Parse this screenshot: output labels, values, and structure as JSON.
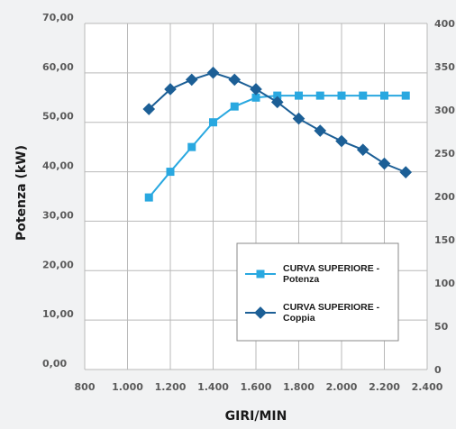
{
  "chart_data": {
    "type": "line",
    "xlabel": "GIRI/MIN",
    "ylabel": "Potenza (kW)",
    "x_ticks": [
      "800",
      "1.000",
      "1.200",
      "1.400",
      "1.600",
      "1.800",
      "2.000",
      "2.200",
      "2.400"
    ],
    "y_ticks_left": [
      "0,00",
      "10,00",
      "20,00",
      "30,00",
      "40,00",
      "50,00",
      "60,00",
      "70,00"
    ],
    "y_ticks_right": [
      "0",
      "50",
      "100",
      "150",
      "200",
      "250",
      "300",
      "350",
      "400"
    ],
    "xlim": [
      800,
      2400
    ],
    "ylim_left": [
      0,
      70
    ],
    "ylim_right": [
      0,
      400
    ],
    "grid": true,
    "legend_position": "bottom-right",
    "series": [
      {
        "name": "CURVA SUPERIORE - Potenza",
        "axis": "left",
        "marker": "square",
        "color": "#29a8e0",
        "x": [
          1100,
          1200,
          1300,
          1400,
          1500,
          1600,
          1700,
          1800,
          1900,
          2000,
          2100,
          2200,
          2300
        ],
        "y": [
          34.8,
          40.0,
          45.0,
          50.0,
          53.2,
          55.0,
          55.4,
          55.4,
          55.4,
          55.4,
          55.4,
          55.4,
          55.4
        ]
      },
      {
        "name": "CURVA SUPERIORE - Coppia",
        "axis": "right",
        "marker": "diamond",
        "color": "#1c5f96",
        "x": [
          1100,
          1200,
          1300,
          1400,
          1500,
          1600,
          1700,
          1800,
          1900,
          2000,
          2100,
          2200,
          2300
        ],
        "y": [
          301,
          324,
          335,
          343,
          335,
          324,
          309,
          290,
          276,
          264,
          254,
          238,
          228
        ]
      }
    ]
  }
}
